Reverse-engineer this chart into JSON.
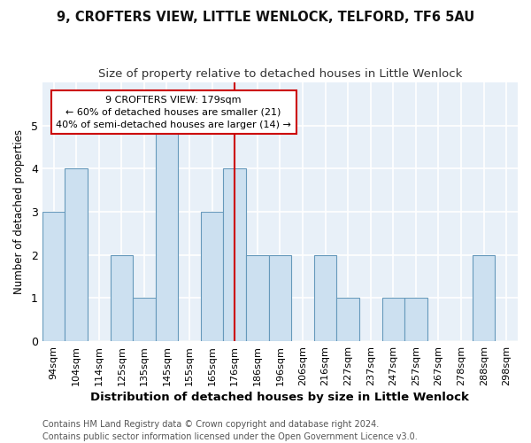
{
  "title1": "9, CROFTERS VIEW, LITTLE WENLOCK, TELFORD, TF6 5AU",
  "title2": "Size of property relative to detached houses in Little Wenlock",
  "xlabel": "Distribution of detached houses by size in Little Wenlock",
  "ylabel": "Number of detached properties",
  "footer1": "Contains HM Land Registry data © Crown copyright and database right 2024.",
  "footer2": "Contains public sector information licensed under the Open Government Licence v3.0.",
  "categories": [
    "94sqm",
    "104sqm",
    "114sqm",
    "125sqm",
    "135sqm",
    "145sqm",
    "155sqm",
    "165sqm",
    "176sqm",
    "186sqm",
    "196sqm",
    "206sqm",
    "216sqm",
    "227sqm",
    "237sqm",
    "247sqm",
    "257sqm",
    "267sqm",
    "278sqm",
    "288sqm",
    "298sqm"
  ],
  "values": [
    3,
    4,
    0,
    2,
    1,
    5,
    0,
    3,
    4,
    2,
    2,
    0,
    2,
    1,
    0,
    1,
    1,
    0,
    0,
    2,
    0
  ],
  "bar_color": "#cce0f0",
  "bar_edge_color": "#6699bb",
  "vline_index": 8,
  "vline_color": "#cc0000",
  "annotation_line1": "9 CROFTERS VIEW: 179sqm",
  "annotation_line2": "← 60% of detached houses are smaller (21)",
  "annotation_line3": "40% of semi-detached houses are larger (14) →",
  "annotation_box_edgecolor": "#cc0000",
  "ylim": [
    0,
    6
  ],
  "yticks": [
    0,
    1,
    2,
    3,
    4,
    5,
    6
  ],
  "bg_color": "#e8f0f8",
  "fig_bg_color": "#ffffff",
  "grid_color": "#ffffff",
  "title1_fontsize": 10.5,
  "title2_fontsize": 9.5,
  "xlabel_fontsize": 9.5,
  "ylabel_fontsize": 8.5,
  "tick_fontsize": 8,
  "footer_fontsize": 7
}
